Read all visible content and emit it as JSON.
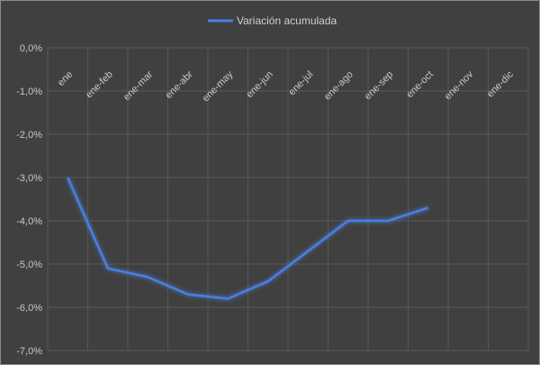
{
  "chart_data": {
    "type": "line",
    "title": "",
    "legend": {
      "position": "top",
      "entries": [
        "Variación acumulada"
      ]
    },
    "categories": [
      "ene",
      "ene-feb",
      "ene-mar",
      "ene-abr",
      "ene-may",
      "ene-jun",
      "ene-jul",
      "ene-ago",
      "ene-sep",
      "ene-oct",
      "ene-nov",
      "ene-dic"
    ],
    "series": [
      {
        "name": "Variación acumulada",
        "color": "#4a7fe0",
        "values": [
          -3.0,
          -5.1,
          -5.3,
          -5.7,
          -5.8,
          -5.4,
          -4.7,
          -4.0,
          -4.0,
          -3.7,
          null,
          null
        ]
      }
    ],
    "ylim": [
      -7.0,
      0.0
    ],
    "yticks": [
      "0,0%",
      "-1,0%",
      "-2,0%",
      "-3,0%",
      "-4,0%",
      "-5,0%",
      "-6,0%",
      "-7,0%"
    ],
    "grid": true,
    "xlabel": "",
    "ylabel": ""
  }
}
